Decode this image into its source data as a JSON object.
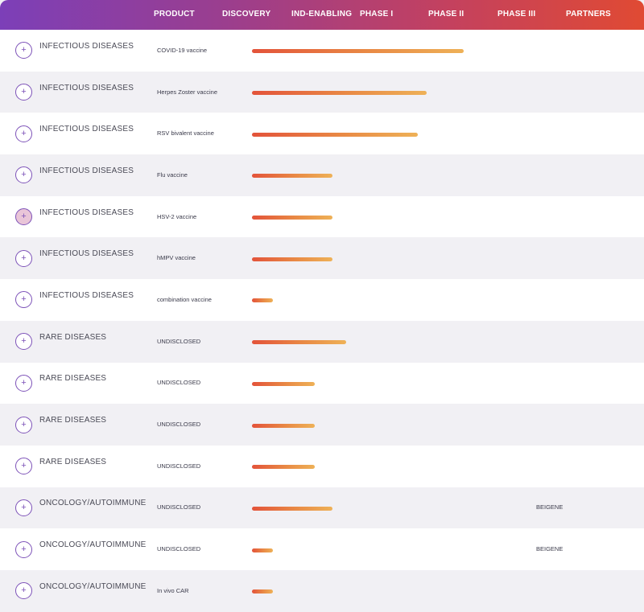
{
  "header": {
    "product": "PRODUCT",
    "discovery": "DISCOVERY",
    "ind_enabling": "IND-ENABLING",
    "phase1": "PHASE I",
    "phase2": "PHASE II",
    "phase3": "PHASE III",
    "partners": "PARTNERS"
  },
  "colors": {
    "header_start": "#7c3fb8",
    "header_end": "#e04a33",
    "bar_start": "#e3533a",
    "bar_end": "#eeb157",
    "accent": "#7d52b8"
  },
  "rows": [
    {
      "area": "INFECTIOUS DISEASES",
      "product": "COVID-19 vaccine",
      "progress": 0.37,
      "partner": ""
    },
    {
      "area": "INFECTIOUS DISEASES",
      "product": "Herpes Zoster vaccine",
      "progress": 0.305,
      "partner": ""
    },
    {
      "area": "INFECTIOUS DISEASES",
      "product": "RSV bivalent vaccine",
      "progress": 0.29,
      "partner": ""
    },
    {
      "area": "INFECTIOUS DISEASES",
      "product": "Flu vaccine",
      "progress": 0.14,
      "partner": ""
    },
    {
      "area": "INFECTIOUS DISEASES",
      "product": "HSV-2 vaccine",
      "progress": 0.14,
      "partner": ""
    },
    {
      "area": "INFECTIOUS DISEASES",
      "product": "hMPV vaccine",
      "progress": 0.14,
      "partner": ""
    },
    {
      "area": "INFECTIOUS DISEASES",
      "product": "combination vaccine",
      "progress": 0.037,
      "partner": ""
    },
    {
      "area": "RARE DISEASES",
      "product": "UNDISCLOSED",
      "progress": 0.165,
      "partner": ""
    },
    {
      "area": "RARE DISEASES",
      "product": "UNDISCLOSED",
      "progress": 0.11,
      "partner": ""
    },
    {
      "area": "RARE DISEASES",
      "product": "UNDISCLOSED",
      "progress": 0.11,
      "partner": ""
    },
    {
      "area": "RARE DISEASES",
      "product": "UNDISCLOSED",
      "progress": 0.11,
      "partner": ""
    },
    {
      "area": "ONCOLOGY/AUTOIMMUNE",
      "product": "UNDISCLOSED",
      "progress": 0.14,
      "partner": "BEIGENE"
    },
    {
      "area": "ONCOLOGY/AUTOIMMUNE",
      "product": "UNDISCLOSED",
      "progress": 0.037,
      "partner": "BEIGENE"
    },
    {
      "area": "ONCOLOGY/AUTOIMMUNE",
      "product": "In vivo CAR",
      "progress": 0.037,
      "partner": ""
    }
  ],
  "active_row": 4,
  "expand_icon": "plus-icon"
}
